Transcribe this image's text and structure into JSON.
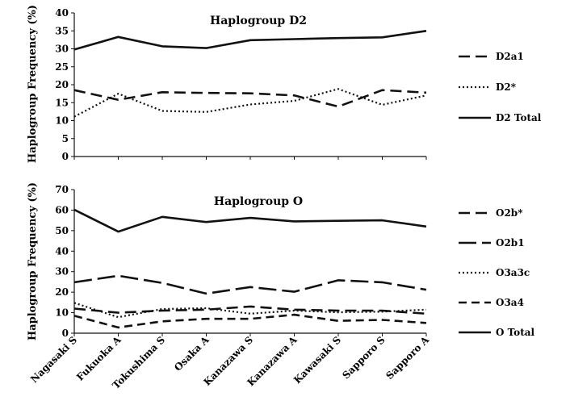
{
  "chart_data": [
    {
      "type": "line",
      "title": "Haplogroup D2",
      "ylabel": "Haplogroup Frequency (%)",
      "xlabel": "",
      "ylim": [
        0,
        40
      ],
      "yticks": [
        0,
        5,
        10,
        15,
        20,
        25,
        30,
        35,
        40
      ],
      "categories": [
        "Nagasaki S",
        "Fukuoka A",
        "Tokushima S",
        "Osaka A",
        "Kanazawa S",
        "Kanazawa A",
        "Kawasaki S",
        "Sapporo S",
        "Sapporo A"
      ],
      "legend_position": "right",
      "grid": false,
      "series": [
        {
          "name": "D2a1",
          "style": "dashed",
          "values": [
            18.5,
            15.8,
            17.9,
            17.7,
            17.6,
            17.0,
            13.9,
            18.5,
            17.8
          ]
        },
        {
          "name": "D2*",
          "style": "dotted",
          "values": [
            11.1,
            17.5,
            12.7,
            12.4,
            14.5,
            15.5,
            18.8,
            14.4,
            17.0
          ]
        },
        {
          "name": "D2 Total",
          "style": "solid",
          "values": [
            29.8,
            33.3,
            30.7,
            30.2,
            32.4,
            32.7,
            33.0,
            33.2,
            35.0
          ]
        }
      ]
    },
    {
      "type": "line",
      "title": "Haplogroup O",
      "ylabel": "Haplogroup Frequency (%)",
      "xlabel": "",
      "ylim": [
        0,
        70
      ],
      "yticks": [
        0,
        10,
        20,
        30,
        40,
        50,
        60,
        70
      ],
      "categories": [
        "Nagasaki S",
        "Fukuoka A",
        "Tokushima S",
        "Osaka A",
        "Kanazawa S",
        "Kanazawa A",
        "Kawasaki S",
        "Sapporo S",
        "Sapporo A"
      ],
      "legend_position": "right",
      "grid": false,
      "series": [
        {
          "name": "O2b*",
          "style": "dashed",
          "values": [
            12.0,
            10.0,
            11.0,
            11.5,
            13.0,
            11.5,
            11.0,
            11.0,
            9.5
          ]
        },
        {
          "name": "O2b1",
          "style": "longdash",
          "values": [
            24.8,
            28.0,
            24.5,
            19.3,
            22.5,
            20.2,
            25.8,
            24.8,
            21.2
          ]
        },
        {
          "name": "O3a3c",
          "style": "dotted",
          "values": [
            14.8,
            7.8,
            11.8,
            12.2,
            9.5,
            11.0,
            10.2,
            10.5,
            11.5
          ]
        },
        {
          "name": "O3a4",
          "style": "shortdash",
          "values": [
            8.5,
            2.8,
            5.8,
            7.0,
            7.0,
            9.0,
            6.0,
            6.5,
            5.0
          ]
        },
        {
          "name": "O Total",
          "style": "solid",
          "values": [
            60.2,
            49.5,
            56.7,
            54.2,
            56.2,
            54.5,
            54.8,
            55.0,
            52.0
          ]
        }
      ]
    }
  ]
}
